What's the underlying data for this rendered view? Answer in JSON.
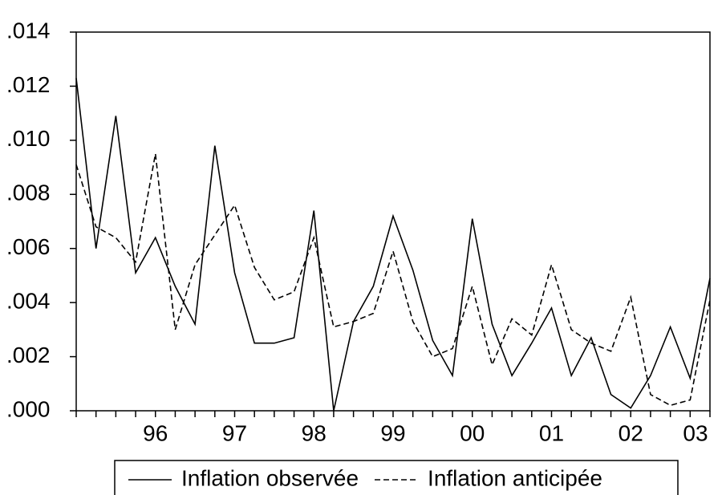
{
  "chart_data": {
    "type": "line",
    "categories": [
      null,
      null,
      null,
      null,
      "96",
      null,
      null,
      null,
      "97",
      null,
      null,
      null,
      "98",
      null,
      null,
      null,
      "99",
      null,
      null,
      null,
      "00",
      null,
      null,
      null,
      "01",
      null,
      null,
      null,
      "02",
      null,
      null,
      null,
      "03"
    ],
    "series": [
      {
        "name": "Inflation observée",
        "color": "#000000",
        "dash": "solid",
        "values": [
          0.0123,
          0.006,
          0.0109,
          0.0051,
          0.0064,
          0.0046,
          0.0032,
          0.0098,
          0.0051,
          0.0025,
          0.0025,
          0.0027,
          0.0074,
          0.0,
          0.0033,
          0.0046,
          0.0072,
          0.0052,
          0.0026,
          0.0013,
          0.0071,
          0.0032,
          0.0013,
          0.0025,
          0.0038,
          0.0013,
          0.0027,
          0.0006,
          0.0001,
          0.0013,
          0.0031,
          0.0012,
          0.0049
        ]
      },
      {
        "name": "Inflation anticipée",
        "color": "#000000",
        "dash": "dashed",
        "values": [
          0.0091,
          0.0068,
          0.0064,
          0.0055,
          0.0095,
          0.003,
          0.0054,
          0.0065,
          0.0076,
          0.0053,
          0.0041,
          0.0044,
          0.0064,
          0.0031,
          0.0033,
          0.0036,
          0.0059,
          0.0033,
          0.002,
          0.0023,
          0.0046,
          0.0017,
          0.0034,
          0.0028,
          0.0054,
          0.003,
          0.0025,
          0.0022,
          0.0042,
          0.0006,
          0.0002,
          0.0004,
          0.0041
        ]
      }
    ],
    "ylim": [
      0,
      0.014
    ],
    "yticks": [
      {
        "value": 0,
        "label": ".000"
      },
      {
        "value": 0.002,
        "label": ".002"
      },
      {
        "value": 0.004,
        "label": ".004"
      },
      {
        "value": 0.006,
        "label": ".006"
      },
      {
        "value": 0.008,
        "label": ".008"
      },
      {
        "value": 0.01,
        "label": ".010"
      },
      {
        "value": 0.012,
        "label": ".012"
      },
      {
        "value": 0.014,
        "label": ".014"
      }
    ],
    "grid": false,
    "legend": "bottom"
  }
}
